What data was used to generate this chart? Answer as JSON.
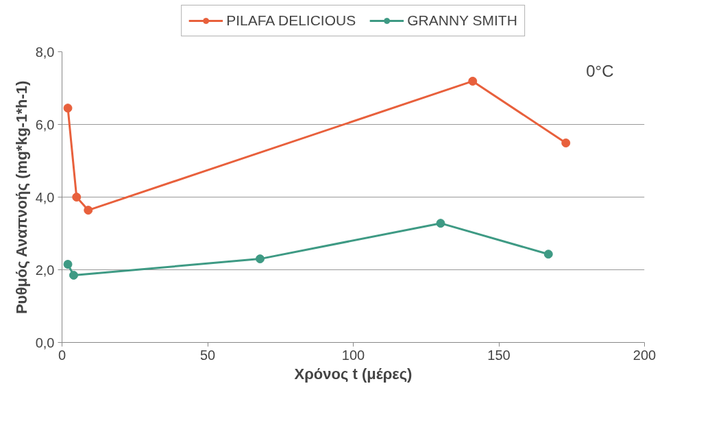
{
  "chart_data": {
    "type": "line",
    "xlabel": "Χρόνος t (μέρες)",
    "ylabel": "Ρυθμός Αναπνοής (mg*kg-1*h-1)",
    "xlim": [
      0,
      200
    ],
    "ylim": [
      0,
      8
    ],
    "xticks": [
      0,
      50,
      100,
      150,
      200
    ],
    "yticks": [
      {
        "value": 0,
        "label": "0,0"
      },
      {
        "value": 2,
        "label": "2,0"
      },
      {
        "value": 4,
        "label": "4,0"
      },
      {
        "value": 6,
        "label": "6,0"
      },
      {
        "value": 8,
        "label": "8,0"
      }
    ],
    "series": [
      {
        "name": "PILAFA DELICIOUS",
        "color": "#e8603c",
        "x": [
          2,
          5,
          9,
          141,
          173
        ],
        "values": [
          6.45,
          4.0,
          3.64,
          7.19,
          5.49
        ]
      },
      {
        "name": "GRANNY SMITH",
        "color": "#3e9a84",
        "x": [
          2,
          4,
          68,
          130,
          167
        ],
        "values": [
          2.15,
          1.85,
          2.3,
          3.28,
          2.43
        ]
      }
    ],
    "annotations": [
      "0°C"
    ],
    "grid": "y",
    "legend": "top",
    "marker": "circle",
    "line_style": "solid"
  }
}
